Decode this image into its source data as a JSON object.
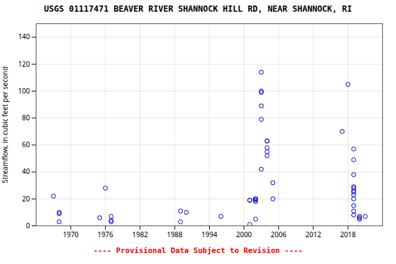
{
  "chart_data": {
    "type": "scatter",
    "title": "USGS 01117471 BEAVER RIVER SHANNOCK HILL RD, NEAR SHANNOCK, RI",
    "ylabel": "Streamflow, in cubic feet per second",
    "annotations": [
      {
        "text": "---- Provisional Data Subject to Revision ----",
        "color": "red"
      }
    ],
    "x": [
      1967,
      1968,
      1968,
      1968,
      1975,
      1976,
      1977,
      1977,
      1977,
      1989,
      1989,
      1990,
      1996,
      2001,
      2001,
      2001,
      2002,
      2002,
      2002,
      2002,
      2002,
      2002,
      2003,
      2003,
      2003,
      2003,
      2003,
      2003,
      2004,
      2004,
      2004,
      2004,
      2004,
      2005,
      2005,
      2017,
      2018,
      2019,
      2019,
      2019,
      2019,
      2019,
      2019,
      2019,
      2019,
      2019,
      2019,
      2019,
      2019,
      2020,
      2020,
      2020,
      2021
    ],
    "values": [
      22,
      10,
      9,
      3,
      6,
      28,
      7,
      4,
      3,
      11,
      3,
      10,
      7,
      19,
      19,
      1,
      20,
      20,
      20,
      18,
      19,
      5,
      114,
      100,
      99,
      89,
      79,
      42,
      63,
      63,
      58,
      55,
      52,
      32,
      20,
      70,
      105,
      57,
      49,
      38,
      29,
      28,
      26,
      25,
      23,
      20,
      15,
      11,
      8,
      7,
      6,
      5,
      7
    ],
    "color": "#0000cc",
    "marker": "circle",
    "xlim": [
      1964,
      2024
    ],
    "ylim": [
      0,
      150
    ],
    "xticks": [
      1970,
      1976,
      1982,
      1988,
      1994,
      2000,
      2006,
      2012,
      2018
    ],
    "yticks": [
      0,
      20,
      40,
      60,
      80,
      100,
      120,
      140
    ],
    "grid": true
  }
}
